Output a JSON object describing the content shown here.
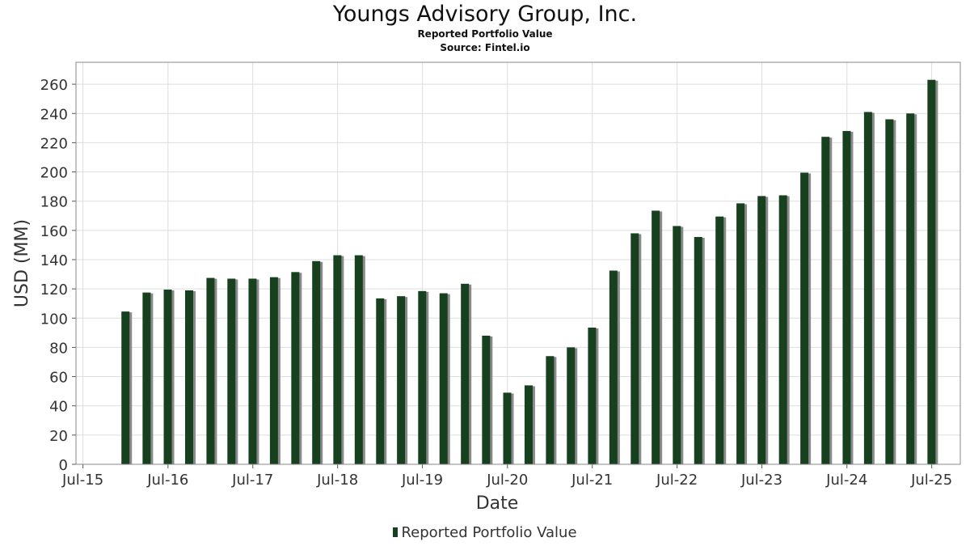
{
  "title": "Youngs Advisory Group, Inc.",
  "subtitle": "Reported Portfolio Value",
  "source": "Source: Fintel.io",
  "colors": {
    "bar": "#17401f",
    "shadow": "#8a8a8a",
    "grid": "#dddddd",
    "frame": "#888888"
  },
  "legend": {
    "label": "Reported Portfolio Value"
  },
  "chart_data": {
    "type": "bar",
    "title": "Youngs Advisory Group, Inc.",
    "subtitle": "Reported Portfolio Value",
    "xlabel": "Date",
    "ylabel": "USD (MM)",
    "ylim": [
      0,
      275
    ],
    "xlim": [
      "2015-06-01",
      "2025-11-01"
    ],
    "yticks": [
      0,
      20,
      40,
      60,
      80,
      100,
      120,
      140,
      160,
      180,
      200,
      220,
      240,
      260
    ],
    "xticks": [
      {
        "label": "Jul-15",
        "date": "2015-07-01"
      },
      {
        "label": "Jul-16",
        "date": "2016-07-01"
      },
      {
        "label": "Jul-17",
        "date": "2017-07-01"
      },
      {
        "label": "Jul-18",
        "date": "2018-07-01"
      },
      {
        "label": "Jul-19",
        "date": "2019-07-01"
      },
      {
        "label": "Jul-20",
        "date": "2020-07-01"
      },
      {
        "label": "Jul-21",
        "date": "2021-07-01"
      },
      {
        "label": "Jul-22",
        "date": "2022-07-01"
      },
      {
        "label": "Jul-23",
        "date": "2023-07-01"
      },
      {
        "label": "Jul-24",
        "date": "2024-07-01"
      },
      {
        "label": "Jul-25",
        "date": "2025-07-01"
      }
    ],
    "grid": true,
    "legend_position": "bottom",
    "series": [
      {
        "name": "Reported Portfolio Value",
        "points": [
          {
            "date": "2015-12-31",
            "value": 104.5
          },
          {
            "date": "2016-03-31",
            "value": 117.5
          },
          {
            "date": "2016-06-30",
            "value": 119.5
          },
          {
            "date": "2016-09-30",
            "value": 119
          },
          {
            "date": "2016-12-31",
            "value": 127.5
          },
          {
            "date": "2017-03-31",
            "value": 127
          },
          {
            "date": "2017-06-30",
            "value": 127
          },
          {
            "date": "2017-09-30",
            "value": 128
          },
          {
            "date": "2017-12-31",
            "value": 131.5
          },
          {
            "date": "2018-03-31",
            "value": 139
          },
          {
            "date": "2018-06-30",
            "value": 143
          },
          {
            "date": "2018-09-30",
            "value": 143
          },
          {
            "date": "2018-12-31",
            "value": 113.5
          },
          {
            "date": "2019-03-31",
            "value": 115
          },
          {
            "date": "2019-06-30",
            "value": 118.5
          },
          {
            "date": "2019-09-30",
            "value": 117
          },
          {
            "date": "2019-12-31",
            "value": 123.5
          },
          {
            "date": "2020-03-31",
            "value": 88
          },
          {
            "date": "2020-06-30",
            "value": 49
          },
          {
            "date": "2020-09-30",
            "value": 54
          },
          {
            "date": "2020-12-31",
            "value": 74
          },
          {
            "date": "2021-03-31",
            "value": 80
          },
          {
            "date": "2021-06-30",
            "value": 93.5
          },
          {
            "date": "2021-09-30",
            "value": 132.5
          },
          {
            "date": "2021-12-31",
            "value": 158
          },
          {
            "date": "2022-03-31",
            "value": 173.5
          },
          {
            "date": "2022-06-30",
            "value": 163
          },
          {
            "date": "2022-09-30",
            "value": 155.5
          },
          {
            "date": "2022-12-31",
            "value": 169.5
          },
          {
            "date": "2023-03-31",
            "value": 178.5
          },
          {
            "date": "2023-06-30",
            "value": 183.5
          },
          {
            "date": "2023-09-30",
            "value": 184
          },
          {
            "date": "2023-12-31",
            "value": 199.5
          },
          {
            "date": "2024-03-31",
            "value": 224
          },
          {
            "date": "2024-06-30",
            "value": 228
          },
          {
            "date": "2024-09-30",
            "value": 241
          },
          {
            "date": "2024-12-31",
            "value": 236
          },
          {
            "date": "2025-03-31",
            "value": 240
          },
          {
            "date": "2025-06-30",
            "value": 263
          }
        ]
      }
    ]
  }
}
